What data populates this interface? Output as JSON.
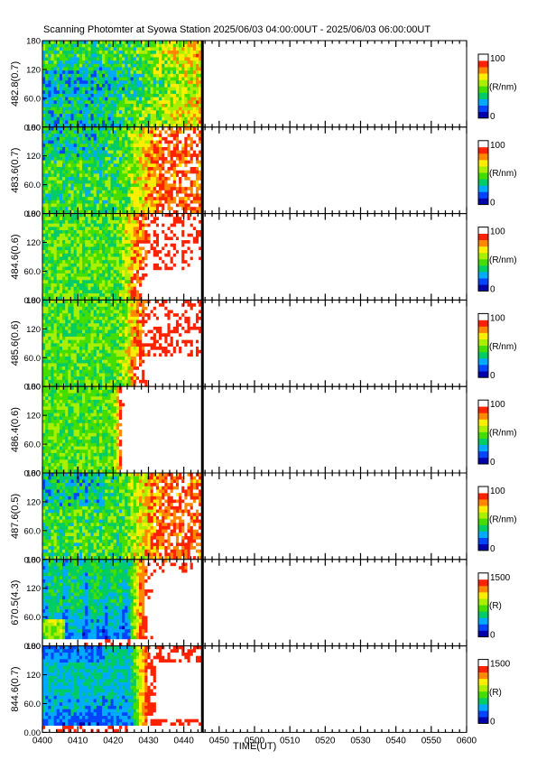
{
  "chart_data": {
    "type": "heatmap",
    "title": "Scanning Photomter at Syowa Station  2025/06/03 04:00:00UT - 2025/06/03 06:00:00UT",
    "xlabel": "TIME(UT)",
    "x_ticks": [
      "0400",
      "0410",
      "0420",
      "0430",
      "0440",
      "0450",
      "0500",
      "0510",
      "0520",
      "0530",
      "0540",
      "0550",
      "0600"
    ],
    "y_ticks": [
      "0.00",
      "60.0",
      "120",
      "180"
    ],
    "ylim": [
      0,
      180
    ],
    "data_end_time": "0445",
    "colorscale": [
      "#0000aa",
      "#0044ff",
      "#00aaff",
      "#00cc66",
      "#44dd00",
      "#aaee00",
      "#ffee00",
      "#ff8800",
      "#ff2200",
      "#ffffff"
    ],
    "panels": [
      {
        "label": "482.8(0.7)",
        "unit": "(R/nm)",
        "cmin": "0",
        "cmax": "100",
        "pattern": "weak"
      },
      {
        "label": "483.6(0.7)",
        "unit": "(R/nm)",
        "cmin": "0",
        "cmax": "100",
        "pattern": "moderate"
      },
      {
        "label": "484.6(0.6)",
        "unit": "(R/nm)",
        "cmin": "0",
        "cmax": "100",
        "pattern": "strong"
      },
      {
        "label": "485.6(0.6)",
        "unit": "(R/nm)",
        "cmin": "0",
        "cmax": "100",
        "pattern": "strong"
      },
      {
        "label": "486.4(0.6)",
        "unit": "(R/nm)",
        "cmin": "0",
        "cmax": "100",
        "pattern": "saturated"
      },
      {
        "label": "487.6(0.5)",
        "unit": "(R/nm)",
        "cmin": "0",
        "cmax": "100",
        "pattern": "moderate"
      },
      {
        "label": "670.5(4.3)",
        "unit": "(R)",
        "cmin": "0",
        "cmax": "1500",
        "pattern": "red"
      },
      {
        "label": "844.6(0.7)",
        "unit": "(R)",
        "cmin": "0",
        "cmax": "1500",
        "pattern": "ir"
      }
    ]
  }
}
